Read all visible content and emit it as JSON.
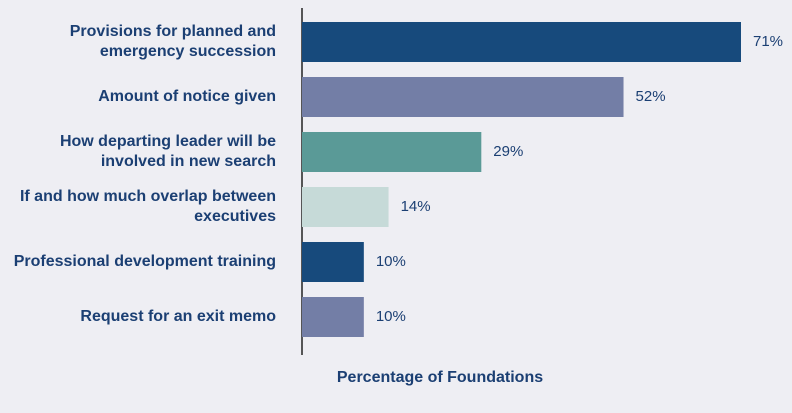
{
  "chart_data": {
    "type": "bar",
    "orientation": "horizontal",
    "x_label": "Percentage of Foundations",
    "categories": [
      "Provisions for planned and emergency succession",
      "Amount of notice given",
      "How departing leader will be involved in new search",
      "If and how much overlap between executives",
      "Professional development training",
      "Request for an exit memo"
    ],
    "values": [
      71,
      52,
      29,
      14,
      10,
      10
    ],
    "value_labels": [
      "71%",
      "52%",
      "29%",
      "14%",
      "10%",
      "10%"
    ],
    "colors": [
      "#174a7c",
      "#737ea6",
      "#5a9a97",
      "#c6dad8",
      "#174a7c",
      "#737ea6"
    ]
  }
}
